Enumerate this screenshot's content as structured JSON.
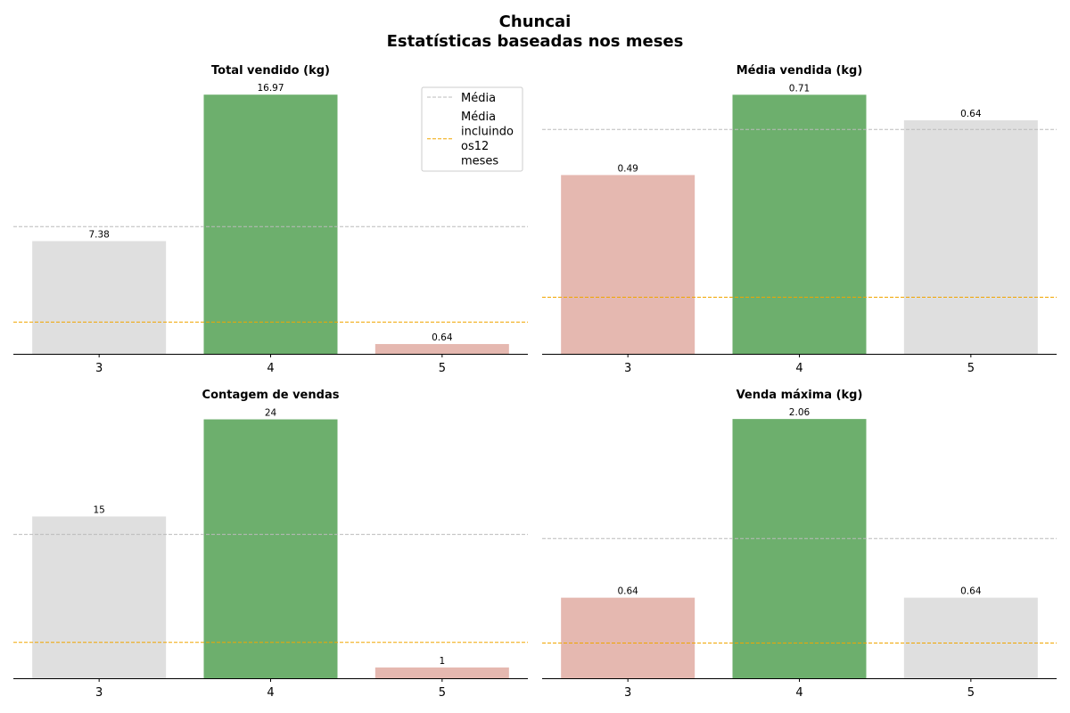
{
  "suptitle": [
    "Chuncai",
    "Estatísticas baseadas nos meses"
  ],
  "colors": {
    "neutral": "#dfdfdf",
    "max": "#6daf6d",
    "min": "#e5b8b0",
    "mean_line": "#bbbbbb",
    "mean12_line": "#f0a500",
    "axis": "#000000"
  },
  "legend": {
    "mean_label": "Média",
    "mean12_label_lines": [
      "Média",
      "incluindo",
      "os12",
      "meses"
    ]
  },
  "chart_data": [
    {
      "type": "bar",
      "title": "Total vendido (kg)",
      "categories": [
        "3",
        "4",
        "5"
      ],
      "values": [
        7.38,
        16.97,
        0.64
      ],
      "labels": [
        "7.38",
        "16.97",
        "0.64"
      ],
      "bar_colors": [
        "neutral",
        "max",
        "min"
      ],
      "mean": 8.33,
      "mean_12_months": 2.08,
      "ylim": [
        0,
        17.8
      ],
      "legend": "top-right"
    },
    {
      "type": "bar",
      "title": "Média vendida (kg)",
      "categories": [
        "3",
        "4",
        "5"
      ],
      "values": [
        0.49,
        0.71,
        0.64
      ],
      "labels": [
        "0.49",
        "0.71",
        "0.64"
      ],
      "bar_colors": [
        "min",
        "max",
        "neutral"
      ],
      "mean": 0.615,
      "mean_12_months": 0.155,
      "ylim": [
        0,
        0.745
      ]
    },
    {
      "type": "bar",
      "title": "Contagem de vendas",
      "categories": [
        "3",
        "4",
        "5"
      ],
      "values": [
        15,
        24,
        1
      ],
      "labels": [
        "15",
        "24",
        "1"
      ],
      "bar_colors": [
        "neutral",
        "max",
        "min"
      ],
      "mean": 13.33,
      "mean_12_months": 3.33,
      "ylim": [
        0,
        25.2
      ]
    },
    {
      "type": "bar",
      "title": "Venda máxima (kg)",
      "categories": [
        "3",
        "4",
        "5"
      ],
      "values": [
        0.64,
        2.06,
        0.64
      ],
      "labels": [
        "0.64",
        "2.06",
        "0.64"
      ],
      "bar_colors": [
        "min",
        "max",
        "neutral"
      ],
      "mean": 1.11,
      "mean_12_months": 0.28,
      "ylim": [
        0,
        2.16
      ]
    }
  ]
}
